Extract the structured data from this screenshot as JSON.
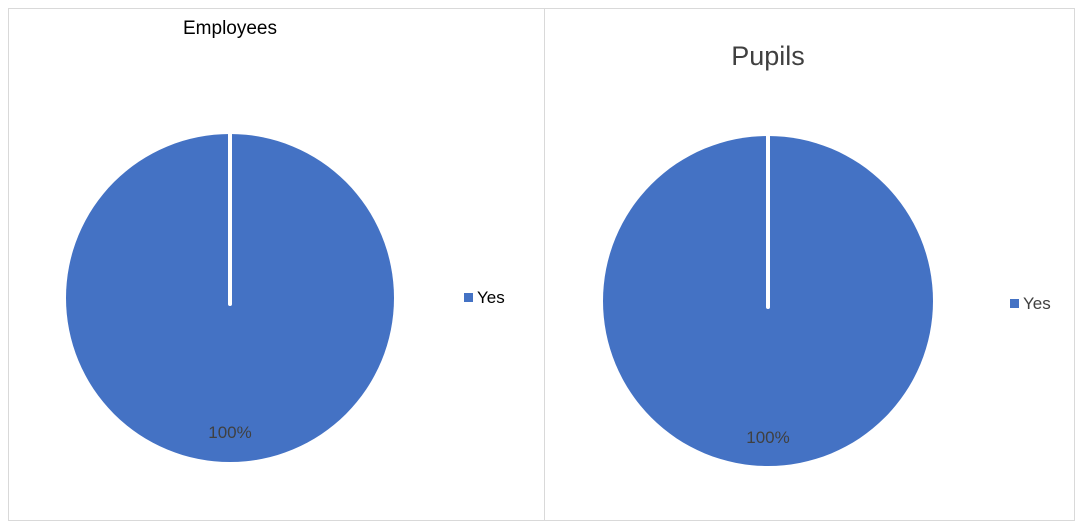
{
  "chart_data": [
    {
      "type": "pie",
      "title": "Employees",
      "categories": [
        "Yes"
      ],
      "values": [
        100
      ],
      "data_labels": [
        "100%"
      ],
      "legend": [
        "Yes"
      ],
      "legend_position": "right",
      "colors": [
        "#4472C4"
      ]
    },
    {
      "type": "pie",
      "title": "Pupils",
      "categories": [
        "Yes"
      ],
      "values": [
        100
      ],
      "data_labels": [
        "100%"
      ],
      "legend": [
        "Yes"
      ],
      "legend_position": "right",
      "colors": [
        "#4472C4"
      ]
    }
  ]
}
